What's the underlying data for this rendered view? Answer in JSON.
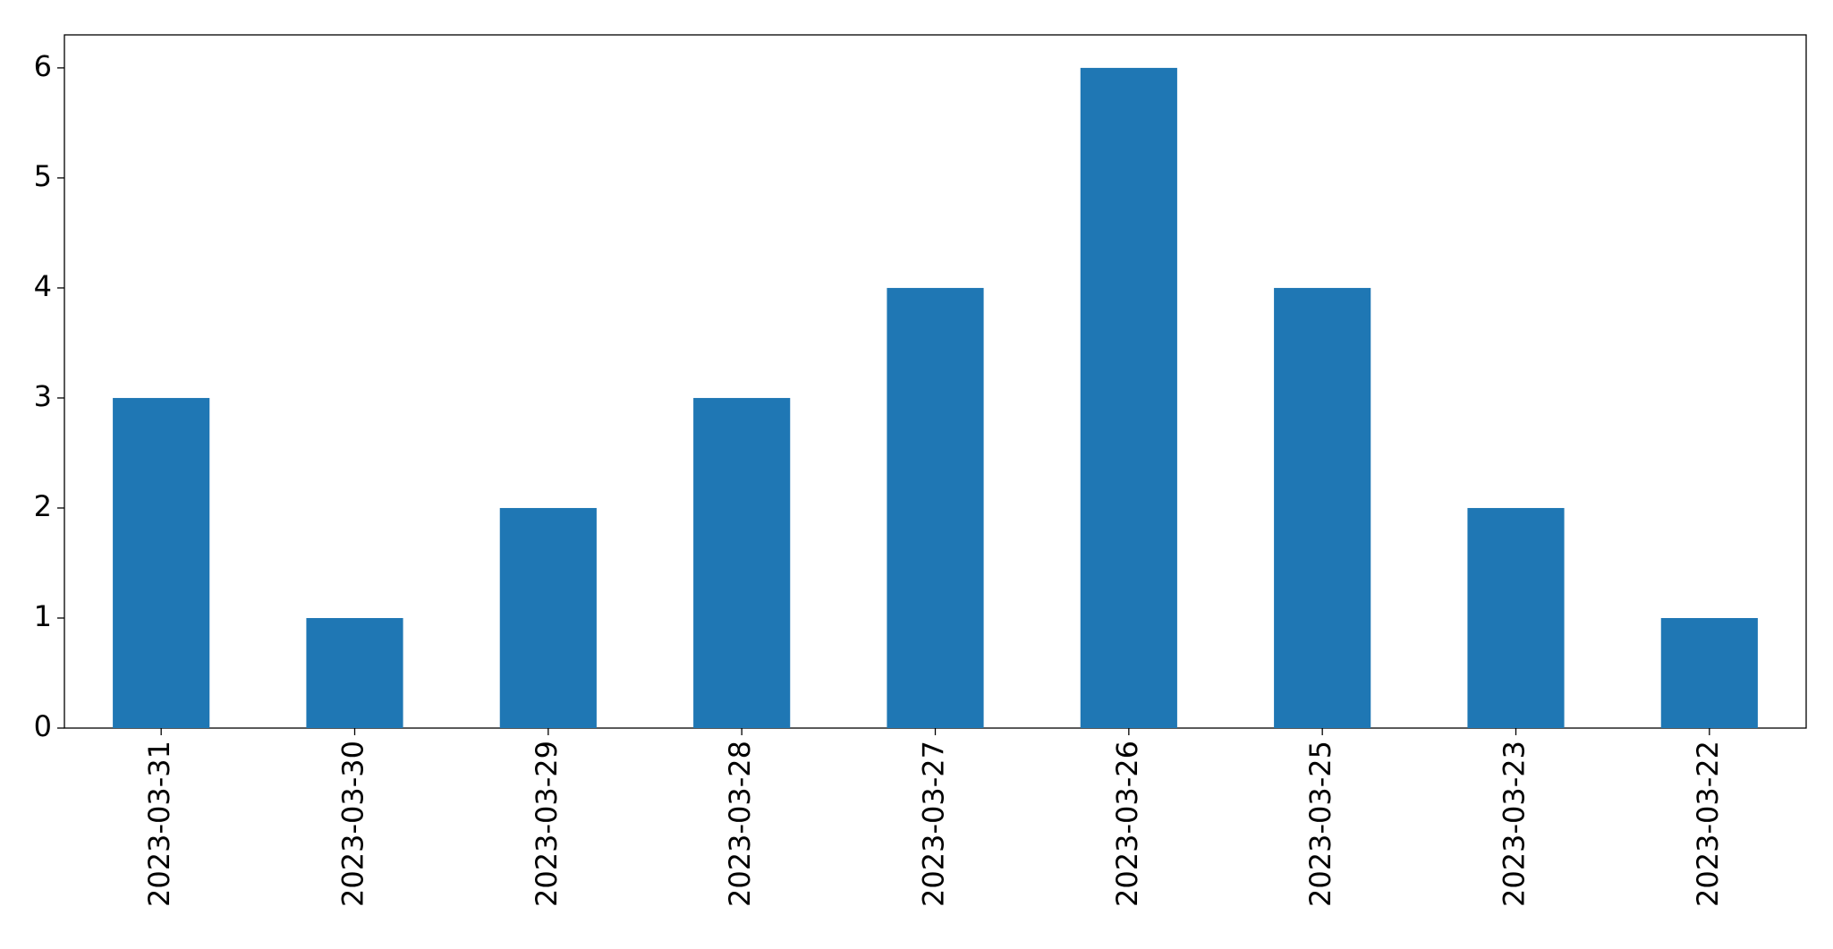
{
  "chart_data": {
    "type": "bar",
    "categories": [
      "2023-03-31",
      "2023-03-30",
      "2023-03-29",
      "2023-03-28",
      "2023-03-27",
      "2023-03-26",
      "2023-03-25",
      "2023-03-23",
      "2023-03-22"
    ],
    "values": [
      3,
      1,
      2,
      3,
      4,
      6,
      4,
      2,
      1
    ],
    "color": "#1f77b4",
    "ylim": [
      0,
      6.3
    ],
    "yticks": [
      0,
      1,
      2,
      3,
      4,
      5,
      6
    ],
    "grid": false
  }
}
